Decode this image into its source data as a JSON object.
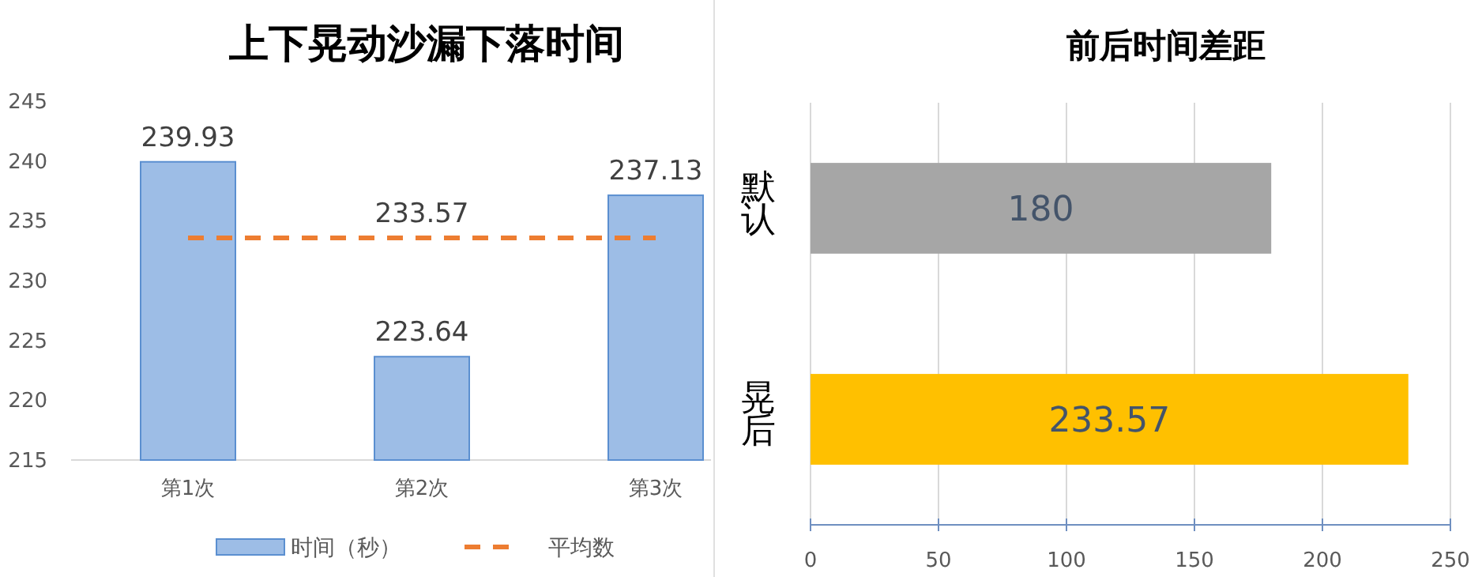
{
  "chart_data": [
    {
      "type": "bar",
      "title": "上下晃动沙漏下落时间",
      "categories": [
        "第1次",
        "第2次",
        "第3次"
      ],
      "series": [
        {
          "name": "时间（秒）",
          "color": "#9dbde6",
          "values": [
            239.93,
            223.64,
            237.13
          ],
          "data_labels": true
        },
        {
          "name": "平均数",
          "type": "line",
          "color": "#ed7d31",
          "line_style": "dashed",
          "values": [
            233.57,
            233.57,
            233.57
          ],
          "value_labels": [
            null,
            "233.57",
            null
          ]
        }
      ],
      "ylim": [
        215,
        245
      ],
      "yticks": [
        215,
        220,
        225,
        230,
        235,
        240,
        245
      ],
      "grid": false,
      "legend": "bottom"
    },
    {
      "type": "bar",
      "orientation": "horizontal",
      "title": "前后时间差距",
      "categories": [
        "默认",
        "晃后"
      ],
      "values": [
        180,
        233.57
      ],
      "colors": [
        "#a6a6a6",
        "#ffc000"
      ],
      "xlim": [
        0,
        250
      ],
      "xticks": [
        0,
        50,
        100,
        150,
        200,
        250
      ],
      "grid": "x",
      "data_labels": true
    }
  ]
}
